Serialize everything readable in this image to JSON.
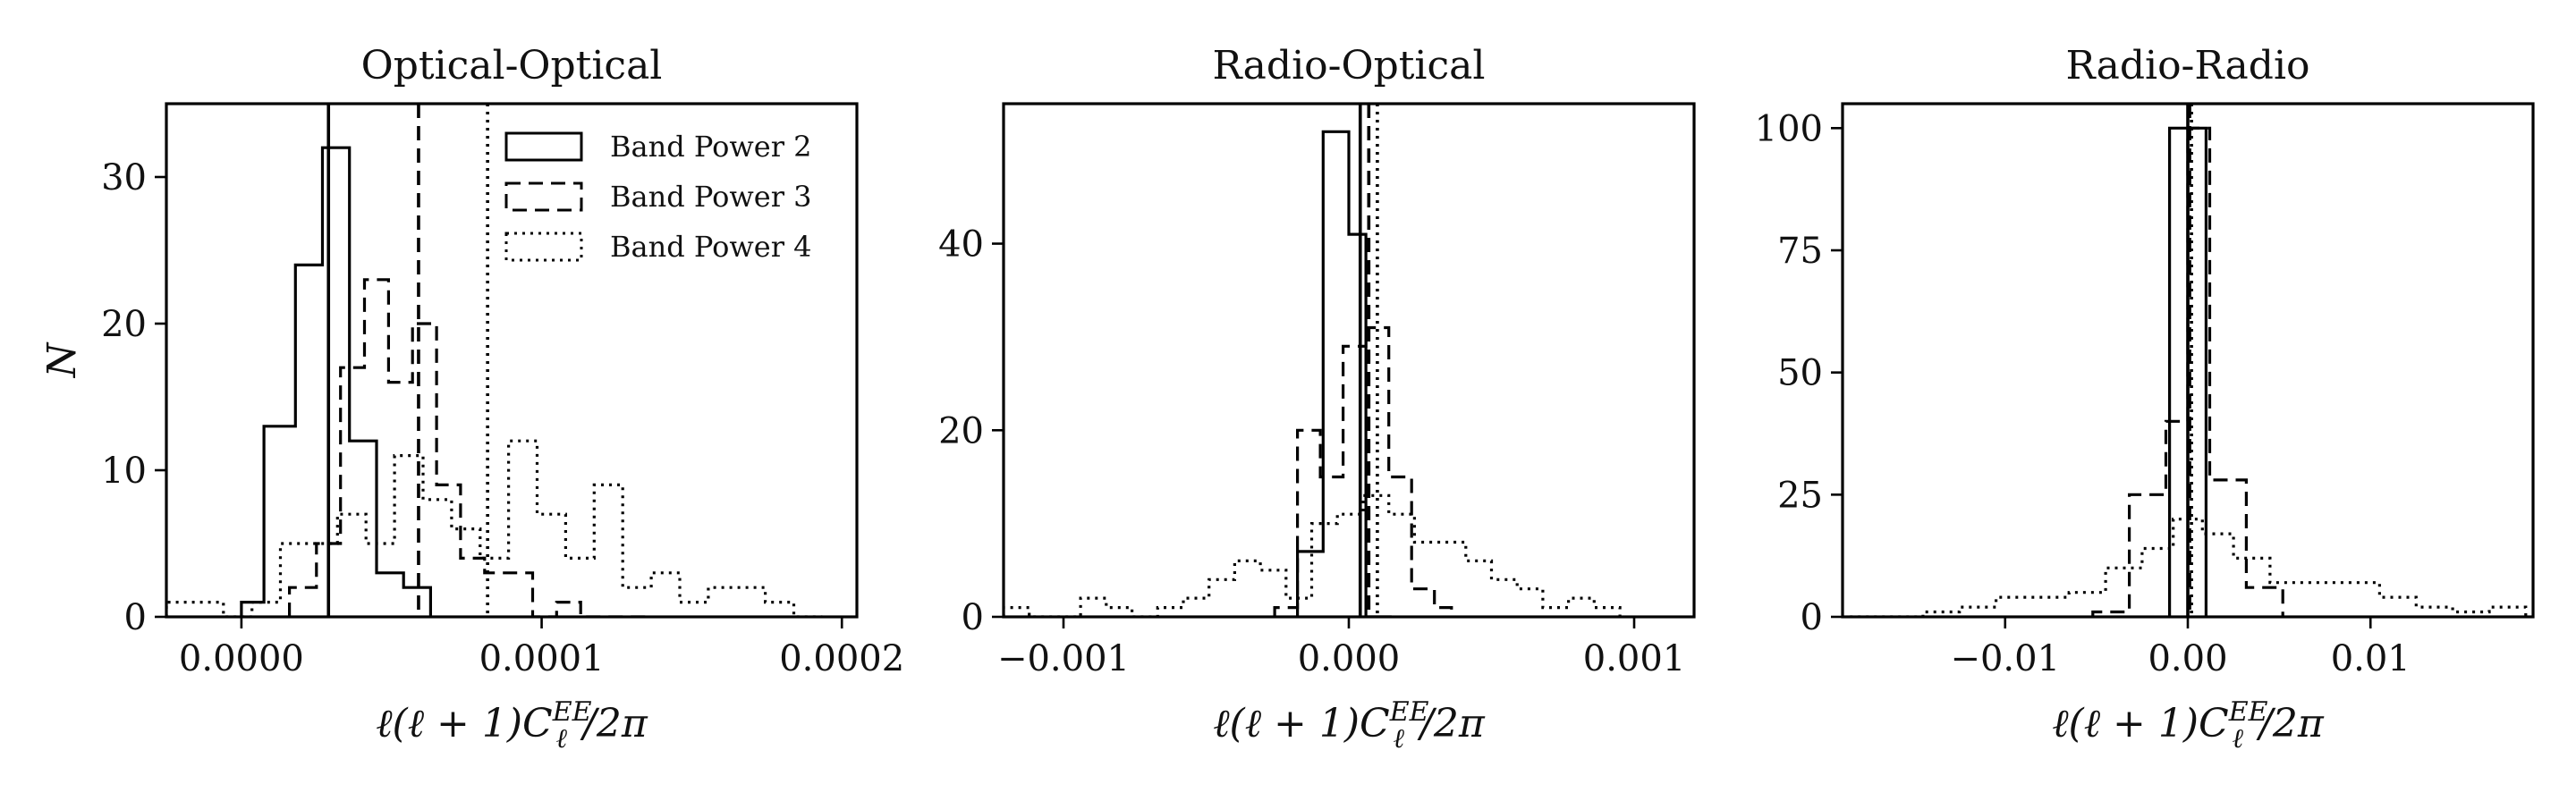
{
  "chart_data": [
    {
      "type": "histogram",
      "title": "Optical-Optical",
      "xlabel": "ℓ(ℓ + 1)C_ℓ^{EE}/2π",
      "ylabel": "N",
      "xlim": [
        -2.5e-05,
        0.000205
      ],
      "ylim": [
        0,
        35
      ],
      "xticks": [
        0.0,
        0.0001,
        0.0002
      ],
      "xtick_labels": [
        "0.0000",
        "0.0001",
        "0.0002"
      ],
      "yticks": [
        0,
        10,
        20,
        30
      ],
      "ytick_labels": [
        "0",
        "10",
        "20",
        "30"
      ],
      "legend_position": "top-right",
      "legend": [
        {
          "label": "Band Power 2",
          "style": "solid"
        },
        {
          "label": "Band Power 3",
          "style": "dashed"
        },
        {
          "label": "Band Power 4",
          "style": "dotted"
        }
      ],
      "series": [
        {
          "name": "Band Power 2",
          "style": "solid",
          "bin_edges": [
            0.0,
            7.5e-06,
            1.8e-05,
            2.7e-05,
            3.6e-05,
            4.5e-05,
            5.4e-05,
            6.3e-05
          ],
          "counts": [
            1,
            13,
            24,
            32,
            12,
            3,
            2
          ],
          "mean": 2.9e-05
        },
        {
          "name": "Band Power 3",
          "style": "dashed",
          "bin_edges": [
            1.6e-05,
            2.5e-05,
            3.3e-05,
            4.1e-05,
            4.9e-05,
            5.7e-05,
            6.5e-05,
            7.3e-05,
            8.1e-05,
            8.9e-05,
            9.7e-05,
            0.000105,
            0.000113,
            0.000121,
            0.000129,
            0.000137
          ],
          "counts": [
            2,
            5,
            17,
            23,
            16,
            20,
            9,
            4,
            3,
            3,
            0,
            1,
            0,
            0,
            0
          ],
          "mean": 5.9e-05
        },
        {
          "name": "Band Power 4",
          "style": "dotted",
          "bin_edges": [
            -2.5e-05,
            -1.55e-05,
            -6e-06,
            3.5e-06,
            1.3e-05,
            2.25e-05,
            3.2e-05,
            4.15e-05,
            5.1e-05,
            6.05e-05,
            7e-05,
            7.95e-05,
            8.9e-05,
            9.85e-05,
            0.000108,
            0.0001175,
            0.000127,
            0.0001365,
            0.000146,
            0.0001555,
            0.000165,
            0.0001745,
            0.000184,
            0.0001935
          ],
          "counts": [
            1,
            1,
            0,
            1,
            5,
            5,
            7,
            5,
            11,
            8,
            6,
            4,
            12,
            7,
            4,
            9,
            2,
            3,
            1,
            2,
            2,
            1,
            0
          ],
          "mean": 8.2e-05
        }
      ]
    },
    {
      "type": "histogram",
      "title": "Radio-Optical",
      "xlabel": "ℓ(ℓ + 1)C_ℓ^{EE}/2π",
      "ylabel": "",
      "xlim": [
        -0.00121,
        0.00121
      ],
      "ylim": [
        0,
        55
      ],
      "xticks": [
        -0.001,
        0.0,
        0.001
      ],
      "xtick_labels": [
        "−0.001",
        "0.000",
        "0.001"
      ],
      "yticks": [
        0,
        20,
        40
      ],
      "ytick_labels": [
        "0",
        "20",
        "40"
      ],
      "series": [
        {
          "name": "Band Power 2",
          "style": "solid",
          "bin_edges": [
            -0.00018,
            -9e-05,
            0.0,
            6e-05,
            0.00015
          ],
          "counts": [
            7,
            52,
            41,
            0
          ],
          "mean": 4e-05
        },
        {
          "name": "Band Power 3",
          "style": "dashed",
          "bin_edges": [
            -0.00026,
            -0.00018,
            -0.0001,
            -2e-05,
            6e-05,
            0.00014,
            0.00022,
            0.0003,
            0.00036
          ],
          "counts": [
            1,
            20,
            15,
            29,
            31,
            15,
            3,
            1
          ],
          "mean": 7e-05
        },
        {
          "name": "Band Power 4",
          "style": "dotted",
          "bin_edges": [
            -0.00121,
            -0.00112,
            -0.00103,
            -0.00094,
            -0.00085,
            -0.00076,
            -0.00067,
            -0.00058,
            -0.00049,
            -0.0004,
            -0.00031,
            -0.00022,
            -0.00013,
            -4e-05,
            5e-05,
            0.00014,
            0.00023,
            0.00032,
            0.00041,
            0.0005,
            0.00059,
            0.00068,
            0.00077,
            0.00086,
            0.00095
          ],
          "counts": [
            1,
            0,
            0,
            2,
            1,
            0,
            1,
            2,
            4,
            6,
            5,
            2,
            10,
            11,
            13,
            11,
            8,
            8,
            6,
            4,
            3,
            1,
            2,
            1
          ],
          "mean": 0.0001
        }
      ]
    },
    {
      "type": "histogram",
      "title": "Radio-Radio",
      "xlabel": "ℓ(ℓ + 1)C_ℓ^{EE}/2π",
      "ylabel": "",
      "xlim": [
        -0.0189,
        0.0189
      ],
      "ylim": [
        0,
        105
      ],
      "xticks": [
        -0.01,
        0.0,
        0.01
      ],
      "xtick_labels": [
        "−0.01",
        "0.00",
        "0.01"
      ],
      "yticks": [
        0,
        25,
        50,
        75,
        100
      ],
      "ytick_labels": [
        "0",
        "25",
        "50",
        "75",
        "100"
      ],
      "series": [
        {
          "name": "Band Power 2",
          "style": "solid",
          "bin_edges": [
            -0.001,
            0.0,
            0.001
          ],
          "counts": [
            100,
            100
          ],
          "mean": 0.0
        },
        {
          "name": "Band Power 3",
          "style": "dashed",
          "bin_edges": [
            -0.0052,
            -0.0032,
            -0.0012,
            0.0,
            0.0012,
            0.0032,
            0.0052
          ],
          "counts": [
            1,
            25,
            40,
            100,
            28,
            6
          ],
          "mean": 0.0001
        },
        {
          "name": "Band Power 4",
          "style": "dotted",
          "bin_edges": [
            -0.0185,
            -0.0165,
            -0.0145,
            -0.0125,
            -0.0105,
            -0.0085,
            -0.0065,
            -0.0045,
            -0.0025,
            -0.0008,
            0.0008,
            0.0025,
            0.0045,
            0.0065,
            0.0085,
            0.0105,
            0.0125,
            0.0145,
            0.0165,
            0.0185
          ],
          "counts": [
            0,
            0,
            1,
            2,
            4,
            4,
            5,
            10,
            14,
            20,
            17,
            12,
            7,
            7,
            7,
            4,
            2,
            1,
            2
          ],
          "mean": 0.0002
        }
      ]
    }
  ]
}
